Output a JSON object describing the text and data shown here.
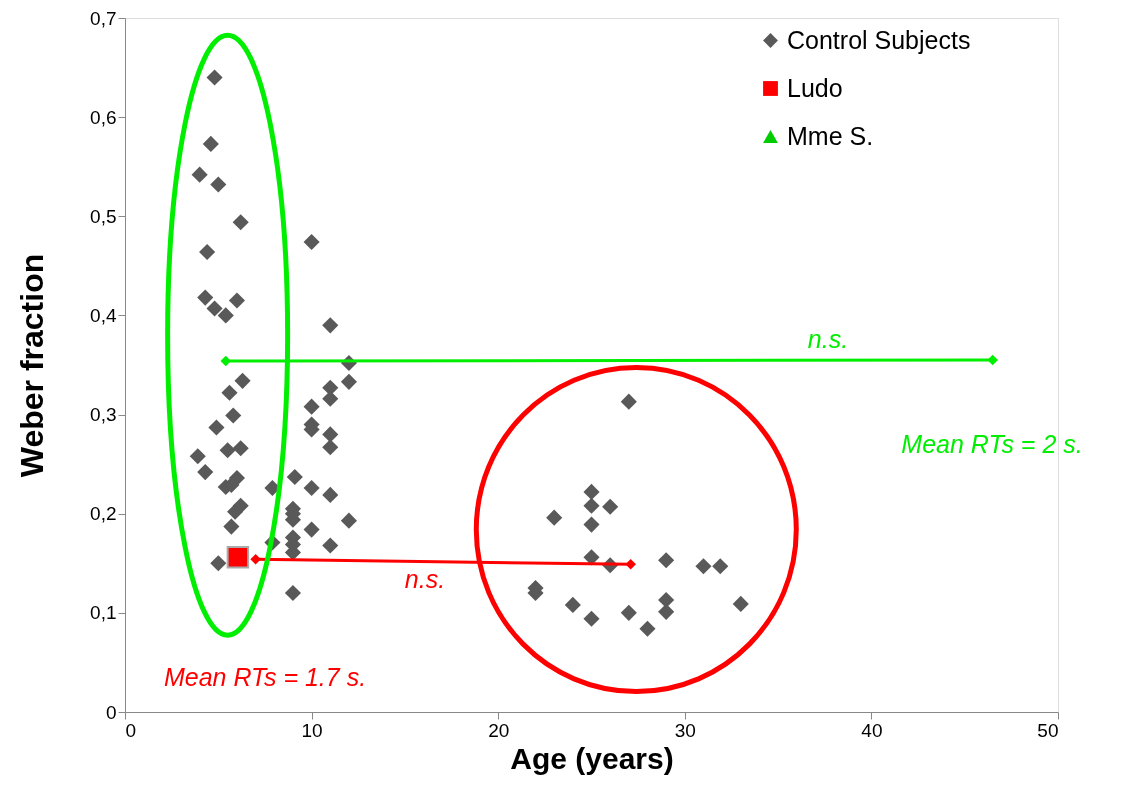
{
  "chart_data": {
    "type": "scatter",
    "xlabel": "Age (years)",
    "ylabel": "Weber  fraction",
    "xlim": [
      0,
      50
    ],
    "xticks": [
      0,
      10,
      20,
      30,
      40,
      50
    ],
    "ylim": [
      0,
      0.7
    ],
    "yticks": [
      0,
      {
        "value": 0.1,
        "label": "0,1"
      },
      {
        "value": 0.2,
        "label": "0,2"
      },
      {
        "value": 0.3,
        "label": "0,3"
      },
      {
        "value": 0.4,
        "label": "0,4"
      },
      {
        "value": 0.5,
        "label": "0,5"
      },
      {
        "value": 0.6,
        "label": "0,6"
      },
      {
        "value": 0.7,
        "label": "0,7"
      }
    ],
    "grid": false,
    "legend": "top right",
    "series": [
      {
        "name": "Control Subjects",
        "marker": "diamond",
        "color": "#595959",
        "x": [
          4.8,
          4.6,
          4,
          5,
          4.4,
          6.2,
          4.3,
          4.8,
          5.4,
          6,
          10,
          11,
          12,
          12,
          11,
          11,
          10,
          10,
          10,
          11,
          11,
          6.3,
          5.6,
          5.8,
          4.9,
          3.9,
          4.3,
          5.5,
          6.2,
          5.4,
          6,
          5.7,
          6.2,
          5.9,
          5.7,
          5,
          9.1,
          7.9,
          10,
          11,
          9,
          9,
          9,
          12,
          10,
          9,
          9,
          9,
          7.9,
          11,
          9,
          27,
          25,
          25,
          26,
          23,
          25,
          25,
          26,
          29,
          31,
          31.9,
          22,
          22,
          24,
          29,
          29,
          25,
          27,
          28,
          33
        ],
        "values": [
          0.64,
          0.573,
          0.542,
          0.532,
          0.464,
          0.494,
          0.418,
          0.407,
          0.4,
          0.415,
          0.474,
          0.39,
          0.352,
          0.333,
          0.327,
          0.316,
          0.308,
          0.29,
          0.285,
          0.28,
          0.267,
          0.334,
          0.322,
          0.299,
          0.287,
          0.258,
          0.242,
          0.264,
          0.266,
          0.227,
          0.236,
          0.229,
          0.208,
          0.202,
          0.187,
          0.15,
          0.237,
          0.226,
          0.226,
          0.219,
          0.205,
          0.2,
          0.194,
          0.193,
          0.184,
          0.176,
          0.169,
          0.161,
          0.171,
          0.168,
          0.12,
          0.313,
          0.222,
          0.208,
          0.207,
          0.196,
          0.189,
          0.156,
          0.148,
          0.153,
          0.147,
          0.147,
          0.125,
          0.12,
          0.108,
          0.113,
          0.101,
          0.094,
          0.1,
          0.084,
          0.109
        ]
      },
      {
        "name": "Ludo",
        "marker": "square",
        "color": "#ff0000",
        "x": [
          6.05
        ],
        "values": [
          0.156
        ]
      },
      {
        "name": "Mme S.",
        "marker": "triangle",
        "color": "#00cc00"
      },
      {
        "type": "line",
        "marker": "diamond",
        "color": "#ff0000",
        "x": [
          7,
          27.1
        ],
        "values": [
          0.154,
          0.149
        ]
      },
      {
        "type": "line",
        "marker": "diamond",
        "color": "#00ee00",
        "x": [
          5.4,
          46.5
        ],
        "values": [
          0.354,
          0.355
        ]
      }
    ],
    "annotations": [
      "n.s.",
      "Mean RTs = 2 s.",
      "n.s.",
      "Mean RTs = 1.7 s."
    ]
  }
}
